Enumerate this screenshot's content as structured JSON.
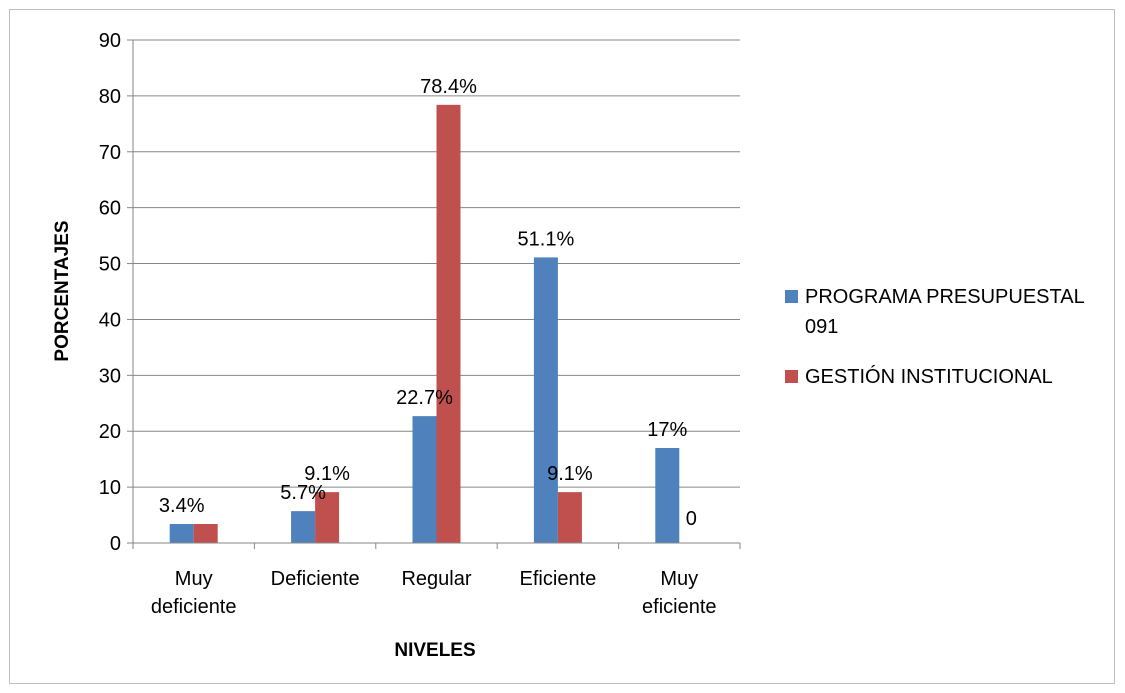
{
  "chart_data": {
    "type": "bar",
    "categories": [
      [
        "Muy",
        "deficiente"
      ],
      [
        "Deficiente"
      ],
      [
        "Regular"
      ],
      [
        "Eficiente"
      ],
      [
        "Muy",
        "eficiente"
      ]
    ],
    "series": [
      {
        "name": [
          "PROGRAMA PRESUPUESTAL",
          "091"
        ],
        "color": "#4f81bd",
        "values": [
          3.4,
          5.7,
          22.7,
          51.1,
          17
        ],
        "labels": [
          "3.4%",
          "5.7%",
          "22.7%",
          "51.1%",
          "17%"
        ]
      },
      {
        "name": [
          "GESTIÓN INSTITUCIONAL"
        ],
        "color": "#c0504d",
        "values": [
          3.4,
          9.1,
          78.4,
          9.1,
          0
        ],
        "labels": [
          "",
          "9.1%",
          "78.4%",
          "9.1%",
          "0"
        ]
      }
    ],
    "xlabel": "NIVELES",
    "ylabel": "PORCENTAJES",
    "ylim": [
      0,
      90
    ],
    "yticks": [
      0,
      10,
      20,
      30,
      40,
      50,
      60,
      70,
      80,
      90
    ],
    "grid": true,
    "legend_position": "right"
  }
}
